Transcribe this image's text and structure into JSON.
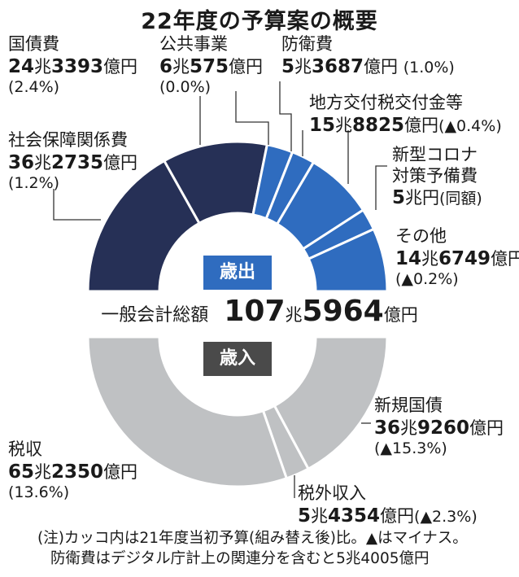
{
  "title": "22年度の予算案の概要",
  "center": {
    "expenditure_label": "歳出",
    "revenue_label": "歳入",
    "total_label": "一般会計総額",
    "total_value_1": "107",
    "total_unit_1": "兆",
    "total_value_2": "5964",
    "total_unit_2": "億円"
  },
  "labels": {
    "kokusaihi": {
      "name": "国債費",
      "big1": "24",
      "u1": "兆",
      "big2": "3393",
      "u2": "億円",
      "pct": "(2.4%)"
    },
    "kokyo": {
      "name": "公共事業",
      "big1": "6",
      "u1": "兆",
      "big2": "575",
      "u2": "億円",
      "pct": "(0.0%)"
    },
    "boei": {
      "name": "防衛費",
      "big1": "5",
      "u1": "兆",
      "big2": "3687",
      "u2": "億円",
      "pct": "(1.0%)"
    },
    "chiho": {
      "name": "地方交付税交付金等",
      "big1": "15",
      "u1": "兆",
      "big2": "8825",
      "u2": "億円",
      "pct": "(▲0.4%)"
    },
    "corona": {
      "name1": "新型コロナ",
      "name2": "対策予備費",
      "big1": "5",
      "u1": "兆円",
      "pct": "(同額)"
    },
    "sonota": {
      "name": "その他",
      "big1": "14",
      "u1": "兆",
      "big2": "6749",
      "u2": "億円",
      "pct": "(▲0.2%)"
    },
    "shakai": {
      "name": "社会保障関係費",
      "big1": "36",
      "u1": "兆",
      "big2": "2735",
      "u2": "億円",
      "pct": "(1.2%)"
    },
    "shinki": {
      "name": "新規国債",
      "big1": "36",
      "u1": "兆",
      "big2": "9260",
      "u2": "億円",
      "pct": "(▲15.3%)"
    },
    "zeishu": {
      "name": "税収",
      "big1": "65",
      "u1": "兆",
      "big2": "2350",
      "u2": "億円",
      "pct": "(13.6%)"
    },
    "zeigai": {
      "name": "税外収入",
      "big1": "5",
      "u1": "兆",
      "big2": "4354",
      "u2": "億円",
      "pct": "(▲2.3%)"
    }
  },
  "note": {
    "line1": "(注)カッコ内は21年度当初予算(組み替え後)比。▲はマイナス。",
    "line2": "防衛費はデジタル庁計上の関連分を含むと5兆4005億円"
  },
  "colors": {
    "navy": "#263056",
    "blue": "#2f6cbf",
    "gray": "#bfc1c3",
    "dark_gray": "#555658",
    "badge_blue": "#2f6cbf",
    "badge_gray": "#4a4a4a"
  },
  "chart_data": [
    {
      "type": "pie",
      "name": "歳出",
      "unit": "億円",
      "slices": [
        {
          "label": "社会保障関係費",
          "value": 362735,
          "change_pct": "1.2%"
        },
        {
          "label": "国債費",
          "value": 243393,
          "change_pct": "2.4%"
        },
        {
          "label": "公共事業",
          "value": 60575,
          "change_pct": "0.0%"
        },
        {
          "label": "防衛費",
          "value": 53687,
          "change_pct": "1.0%"
        },
        {
          "label": "地方交付税交付金等",
          "value": 158825,
          "change_pct": "▲0.4%"
        },
        {
          "label": "新型コロナ対策予備費",
          "value": 50000,
          "change_pct": "同額"
        },
        {
          "label": "その他",
          "value": 146749,
          "change_pct": "▲0.2%"
        }
      ]
    },
    {
      "type": "pie",
      "name": "歳入",
      "unit": "億円",
      "slices": [
        {
          "label": "新規国債",
          "value": 369260,
          "change_pct": "▲15.3%"
        },
        {
          "label": "税外収入",
          "value": 54354,
          "change_pct": "▲2.3%"
        },
        {
          "label": "税収",
          "value": 652350,
          "change_pct": "13.6%"
        }
      ]
    }
  ]
}
